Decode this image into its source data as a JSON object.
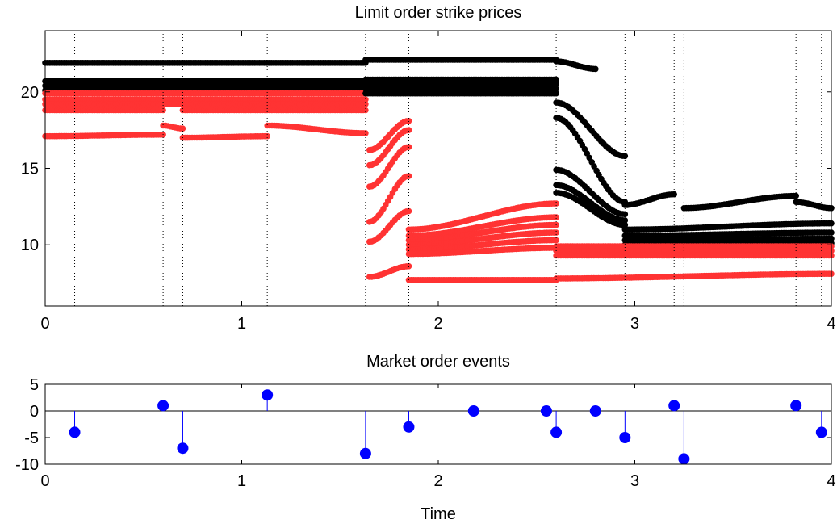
{
  "chart_data": [
    {
      "type": "scatter",
      "title": "Limit order strike prices",
      "xlabel": "",
      "ylabel": "",
      "xlim": [
        0,
        4
      ],
      "ylim": [
        6,
        24
      ],
      "xticks": [
        "0",
        "1",
        "2",
        "3",
        "4"
      ],
      "yticks": [
        "10",
        "15",
        "20"
      ],
      "grid": false,
      "vlines_dotted": [
        0.15,
        0.6,
        0.7,
        1.13,
        1.63,
        1.85,
        2.6,
        2.95,
        3.2,
        3.25,
        3.82,
        3.95
      ],
      "colors": {
        "black": "#000000",
        "red": "#ff3333"
      },
      "segments": [
        {
          "color": "black",
          "x0": 0.0,
          "x1": 1.63,
          "y0": 21.9,
          "y1": 21.9
        },
        {
          "color": "black",
          "x0": 0.0,
          "x1": 1.63,
          "y0": 20.7,
          "y1": 20.7
        },
        {
          "color": "black",
          "x0": 0.0,
          "x1": 1.63,
          "y0": 20.4,
          "y1": 20.4
        },
        {
          "color": "black",
          "x0": 0.0,
          "x1": 1.63,
          "y0": 20.1,
          "y1": 20.1
        },
        {
          "color": "red",
          "x0": 0.0,
          "x1": 1.63,
          "y0": 19.9,
          "y1": 19.9
        },
        {
          "color": "red",
          "x0": 0.0,
          "x1": 1.63,
          "y0": 19.5,
          "y1": 19.5
        },
        {
          "color": "red",
          "x0": 0.0,
          "x1": 1.63,
          "y0": 19.2,
          "y1": 19.2
        },
        {
          "color": "red",
          "x0": 0.0,
          "x1": 0.6,
          "y0": 18.8,
          "y1": 18.8
        },
        {
          "color": "red",
          "x0": 0.7,
          "x1": 1.63,
          "y0": 18.8,
          "y1": 18.8
        },
        {
          "color": "red",
          "x0": 0.0,
          "x1": 0.6,
          "y0": 17.1,
          "y1": 17.2
        },
        {
          "color": "red",
          "x0": 0.6,
          "x1": 0.7,
          "y0": 17.8,
          "y1": 17.6
        },
        {
          "color": "red",
          "x0": 0.7,
          "x1": 1.13,
          "y0": 17.0,
          "y1": 17.1
        },
        {
          "color": "red",
          "x0": 1.13,
          "x1": 1.63,
          "y0": 17.8,
          "y1": 17.3
        },
        {
          "color": "black",
          "x0": 1.63,
          "x1": 2.6,
          "y0": 22.1,
          "y1": 22.1
        },
        {
          "color": "black",
          "x0": 1.63,
          "x1": 2.6,
          "y0": 20.8,
          "y1": 20.8
        },
        {
          "color": "black",
          "x0": 1.63,
          "x1": 2.6,
          "y0": 20.5,
          "y1": 20.5
        },
        {
          "color": "black",
          "x0": 1.63,
          "x1": 2.6,
          "y0": 20.2,
          "y1": 20.2
        },
        {
          "color": "black",
          "x0": 1.63,
          "x1": 2.6,
          "y0": 19.9,
          "y1": 19.9
        },
        {
          "color": "red",
          "x0": 1.65,
          "x1": 1.85,
          "y0": 16.2,
          "y1": 18.1
        },
        {
          "color": "red",
          "x0": 1.65,
          "x1": 1.85,
          "y0": 15.2,
          "y1": 17.5
        },
        {
          "color": "red",
          "x0": 1.65,
          "x1": 1.85,
          "y0": 13.8,
          "y1": 16.4
        },
        {
          "color": "red",
          "x0": 1.65,
          "x1": 1.85,
          "y0": 11.5,
          "y1": 14.5
        },
        {
          "color": "red",
          "x0": 1.65,
          "x1": 1.85,
          "y0": 10.2,
          "y1": 12.2
        },
        {
          "color": "red",
          "x0": 1.65,
          "x1": 1.85,
          "y0": 7.9,
          "y1": 8.6
        },
        {
          "color": "red",
          "x0": 1.85,
          "x1": 2.6,
          "y0": 11.0,
          "y1": 12.7
        },
        {
          "color": "red",
          "x0": 1.85,
          "x1": 2.6,
          "y0": 10.6,
          "y1": 11.8
        },
        {
          "color": "red",
          "x0": 1.85,
          "x1": 2.6,
          "y0": 10.3,
          "y1": 11.3
        },
        {
          "color": "red",
          "x0": 1.85,
          "x1": 2.6,
          "y0": 10.0,
          "y1": 10.8
        },
        {
          "color": "red",
          "x0": 1.85,
          "x1": 2.6,
          "y0": 9.7,
          "y1": 10.3
        },
        {
          "color": "red",
          "x0": 1.85,
          "x1": 2.6,
          "y0": 9.4,
          "y1": 9.8
        },
        {
          "color": "red",
          "x0": 1.85,
          "x1": 2.6,
          "y0": 7.7,
          "y1": 7.7
        },
        {
          "color": "black",
          "x0": 2.6,
          "x1": 2.8,
          "y0": 22.0,
          "y1": 21.5
        },
        {
          "color": "black",
          "x0": 2.6,
          "x1": 2.95,
          "y0": 19.3,
          "y1": 15.8
        },
        {
          "color": "black",
          "x0": 2.6,
          "x1": 2.95,
          "y0": 18.3,
          "y1": 12.8
        },
        {
          "color": "black",
          "x0": 2.6,
          "x1": 2.95,
          "y0": 14.9,
          "y1": 12.0
        },
        {
          "color": "black",
          "x0": 2.6,
          "x1": 2.95,
          "y0": 13.9,
          "y1": 11.6
        },
        {
          "color": "black",
          "x0": 2.6,
          "x1": 2.95,
          "y0": 13.4,
          "y1": 11.3
        },
        {
          "color": "black",
          "x0": 2.95,
          "x1": 3.2,
          "y0": 12.6,
          "y1": 13.3
        },
        {
          "color": "black",
          "x0": 3.25,
          "x1": 3.82,
          "y0": 12.4,
          "y1": 13.2
        },
        {
          "color": "black",
          "x0": 3.82,
          "x1": 4.0,
          "y0": 12.8,
          "y1": 12.4
        },
        {
          "color": "black",
          "x0": 2.95,
          "x1": 4.0,
          "y0": 11.0,
          "y1": 11.4
        },
        {
          "color": "black",
          "x0": 2.95,
          "x1": 4.0,
          "y0": 10.6,
          "y1": 10.8
        },
        {
          "color": "black",
          "x0": 2.95,
          "x1": 4.0,
          "y0": 10.3,
          "y1": 10.4
        },
        {
          "color": "black",
          "x0": 2.95,
          "x1": 4.0,
          "y0": 10.0,
          "y1": 10.1
        },
        {
          "color": "red",
          "x0": 2.6,
          "x1": 4.0,
          "y0": 9.9,
          "y1": 9.9
        },
        {
          "color": "red",
          "x0": 2.6,
          "x1": 4.0,
          "y0": 9.6,
          "y1": 9.6
        },
        {
          "color": "red",
          "x0": 2.6,
          "x1": 4.0,
          "y0": 9.3,
          "y1": 9.3
        },
        {
          "color": "red",
          "x0": 2.6,
          "x1": 4.0,
          "y0": 7.8,
          "y1": 8.1
        }
      ]
    },
    {
      "type": "stem",
      "title": "Market order events",
      "xlabel": "Time",
      "ylabel": "",
      "xlim": [
        0,
        4
      ],
      "ylim": [
        -10,
        5
      ],
      "xticks": [
        "0",
        "1",
        "2",
        "3",
        "4"
      ],
      "yticks": [
        "5",
        "0",
        "-5",
        "-10"
      ],
      "color": "#0000ff",
      "x": [
        0.15,
        0.6,
        0.7,
        1.13,
        1.63,
        1.85,
        2.18,
        2.55,
        2.6,
        2.8,
        2.95,
        3.2,
        3.25,
        3.82,
        3.95
      ],
      "y": [
        -4,
        1,
        -7,
        3,
        -8,
        -3,
        0,
        0,
        -4,
        0,
        -5,
        1,
        -9,
        1,
        -4
      ]
    }
  ]
}
